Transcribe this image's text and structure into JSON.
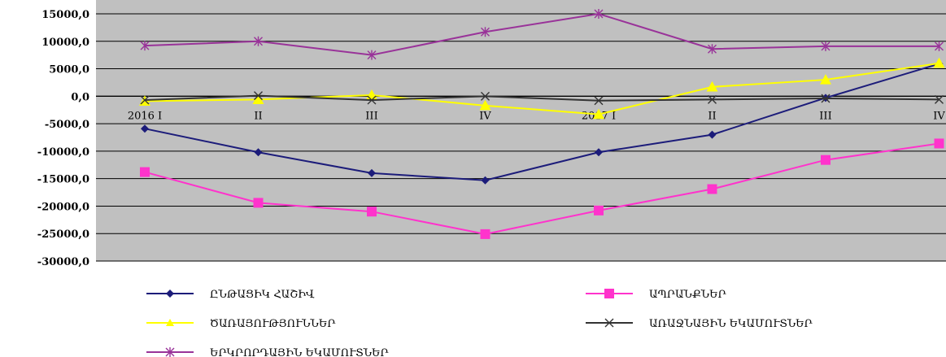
{
  "chart_data": {
    "type": "line",
    "title": "",
    "xlabel": "",
    "ylabel": "",
    "ylim": [
      -30000,
      15000
    ],
    "y_ticks": [
      "15000,0",
      "10000,0",
      "5000,0",
      "0,0",
      "-5000,0",
      "-10000,0",
      "-15000,0",
      "-20000,0",
      "-25000,0",
      "-30000,0"
    ],
    "categories": [
      "2016 I",
      "II",
      "III",
      "IV",
      "2017 I",
      "II",
      "III",
      "IV"
    ],
    "grid": true,
    "plot_background": "#c0c0c0",
    "legend_position": "bottom",
    "series": [
      {
        "name": "ԸՆԹԱՑԻԿ ՀԱՇԻՎ",
        "color": "#1c1c7a",
        "marker": "diamond",
        "values": [
          -5900,
          -10200,
          -14000,
          -15300,
          -10200,
          -7000,
          -300,
          5900
        ]
      },
      {
        "name": "ԱՊՐԱՆՔՆԵՐ",
        "color": "#ff33cc",
        "marker": "square",
        "values": [
          -13800,
          -19400,
          -21000,
          -25100,
          -20800,
          -16900,
          -11600,
          -8600
        ]
      },
      {
        "name": "ԾԱՌԱՅՈՒԹՅՈՒՆՆԵՐ",
        "color": "#ffff00",
        "marker": "triangle",
        "values": [
          -900,
          -600,
          200,
          -1700,
          -3300,
          1700,
          3000,
          6000
        ]
      },
      {
        "name": "ԱՌԱՋՆԱՅԻՆ ԵԿԱՄՈՒՏՆԵՐ",
        "color": "#333333",
        "marker": "x",
        "values": [
          -700,
          100,
          -700,
          0,
          -800,
          -600,
          -400,
          -600
        ]
      },
      {
        "name": "ԵՐԿՐՈՐԴԱՅԻՆ ԵԿԱՄՈՒՏՆԵՐ",
        "color": "#993399",
        "marker": "star",
        "values": [
          9200,
          10000,
          7500,
          11700,
          15000,
          8600,
          9100,
          9100
        ]
      }
    ]
  }
}
